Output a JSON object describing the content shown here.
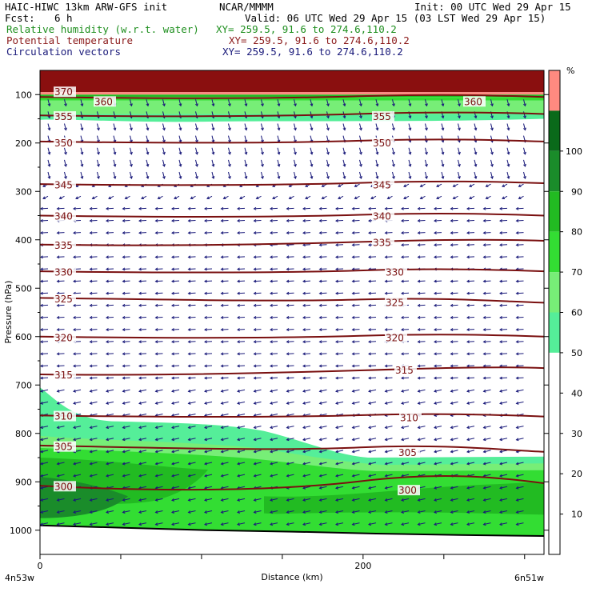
{
  "header": {
    "model": "HAIC-HIWC 13km ARW-GFS init",
    "org": "NCAR/MMMM",
    "init": "Init: 00 UTC Wed 29 Apr 15",
    "fcst_label": "Fcst:",
    "fcst_value": "6 h",
    "valid": "Valid: 06 UTC Wed 29 Apr 15 (03 LST Wed 29 Apr 15)",
    "fields": [
      {
        "name": "Relative humidity (w.r.t. water)",
        "xy": "XY= 259.5, 91.6 to 274.6,110.2",
        "color": "#1f8f1f"
      },
      {
        "name": "Potential temperature",
        "xy": "XY= 259.5, 91.6 to 274.6,110.2",
        "color": "#8b1a1a"
      },
      {
        "name": "Circulation vectors",
        "xy": "XY= 259.5, 91.6 to 274.6,110.2",
        "color": "#1a1a7a"
      }
    ]
  },
  "chart_data": {
    "type": "vertical cross-section (filled contour + contour lines + vectors)",
    "xlabel": "Distance (km)",
    "ylabel": "Pressure (hPa)",
    "x_ticks": [
      "0",
      "200"
    ],
    "x_range": [
      0,
      312
    ],
    "x_minor_step_km": 50,
    "y_ticks": [
      100,
      200,
      300,
      400,
      500,
      600,
      700,
      800,
      900,
      1000
    ],
    "y_range": [
      50,
      1050
    ],
    "endpoint_left": "4n53w",
    "endpoint_right": "6n51w",
    "colorbar": {
      "unit": "%",
      "levels": [
        10,
        20,
        30,
        40,
        50,
        60,
        70,
        80,
        90,
        100
      ],
      "colors": [
        "#ffffff",
        "#ffffff",
        "#ffffff",
        "#ffffff",
        "#ffffff",
        "#55ee99",
        "#77ee77",
        "#33dd33",
        "#22bb22",
        "#1a8c2a",
        "#0a6a1a",
        "#ff8a80"
      ]
    },
    "theta_labels": [
      "370",
      "360",
      "355",
      "350",
      "345",
      "340",
      "335",
      "330",
      "325",
      "320",
      "315",
      "310",
      "305",
      "300"
    ],
    "theta_contours": [
      {
        "theta": 360,
        "p_left": 105,
        "p_right": 105
      },
      {
        "theta": 355,
        "p_left": 143,
        "p_right": 140
      },
      {
        "theta": 350,
        "p_left": 197,
        "p_right": 197
      },
      {
        "theta": 345,
        "p_left": 285,
        "p_right": 283
      },
      {
        "theta": 340,
        "p_left": 350,
        "p_right": 350
      },
      {
        "theta": 335,
        "p_left": 410,
        "p_right": 402
      },
      {
        "theta": 330,
        "p_left": 465,
        "p_right": 465
      },
      {
        "theta": 325,
        "p_left": 520,
        "p_right": 530
      },
      {
        "theta": 320,
        "p_left": 600,
        "p_right": 600
      },
      {
        "theta": 315,
        "p_left": 678,
        "p_right": 665
      },
      {
        "theta": 310,
        "p_left": 763,
        "p_right": 765
      },
      {
        "theta": 305,
        "p_left": 825,
        "p_right": 838
      },
      {
        "theta": 300,
        "p_left": 908,
        "p_right": 903
      }
    ],
    "surface_pressure_hpa": [
      990,
      995,
      1000,
      1003,
      1007,
      1010,
      1012
    ],
    "rh_regions": [
      {
        "level": ">=100",
        "p_top": 50,
        "p_bottom": 95
      },
      {
        "level": "70-80",
        "p_top": 95,
        "p_bottom": 140
      },
      {
        "level": "50-60",
        "p_top": 140,
        "p_bottom": 155
      },
      {
        "level": "50-60 (boundary layer)",
        "p_top_left": 705,
        "p_top_right": 850
      },
      {
        "level": "80-100 (boundary layer)",
        "p_top_left": 855,
        "p_top_right": 875
      }
    ]
  }
}
